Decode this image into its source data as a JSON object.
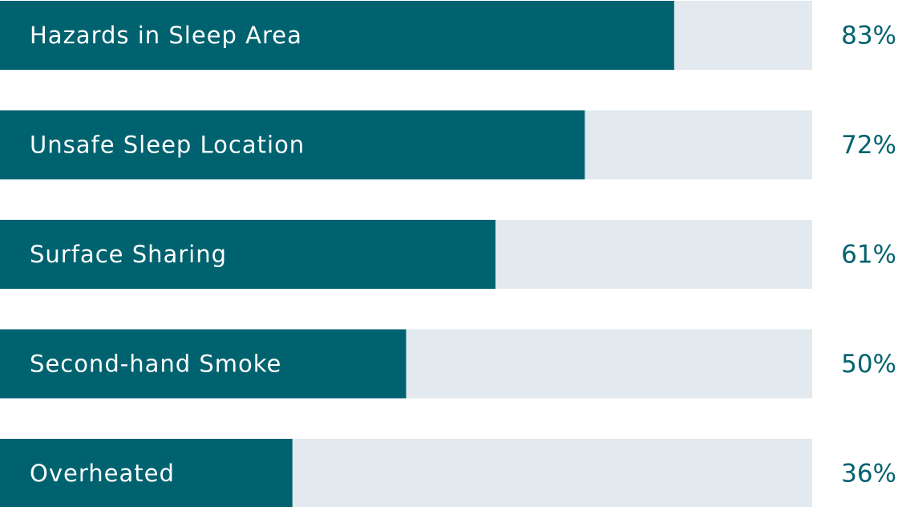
{
  "chart_data": {
    "type": "bar",
    "orientation": "horizontal",
    "categories": [
      "Hazards in Sleep Area",
      "Unsafe Sleep Location",
      "Surface Sharing",
      "Second-hand Smoke",
      "Overheated"
    ],
    "values": [
      83,
      72,
      61,
      50,
      36
    ],
    "value_labels": [
      "83%",
      "72%",
      "61%",
      "50%",
      "36%"
    ],
    "color": "#00626f",
    "track_color": "#e2e9ef",
    "xlim": [
      0,
      100
    ]
  }
}
